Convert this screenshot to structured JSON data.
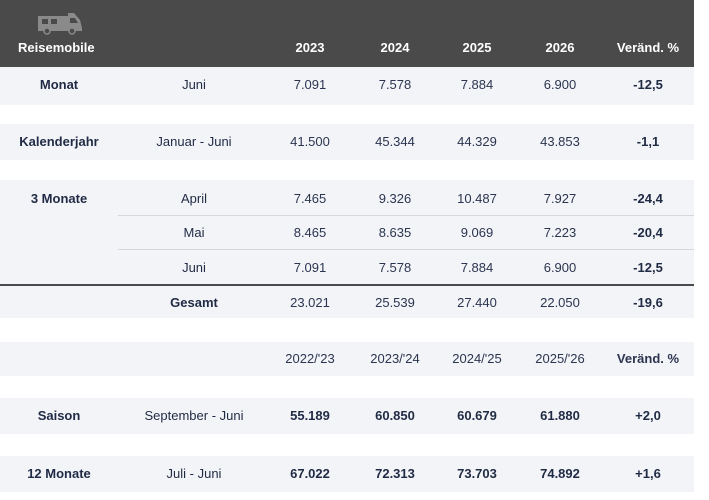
{
  "header": {
    "icon": "camper-van-icon",
    "title": "Reisemobile",
    "columns": [
      "2023",
      "2024",
      "2025",
      "2026",
      "Veränd. %"
    ]
  },
  "rows": {
    "monat": {
      "label": "Monat",
      "period": "Juni",
      "values": [
        "7.091",
        "7.578",
        "7.884",
        "6.900"
      ],
      "change": "-12,5"
    },
    "kalenderjahr": {
      "label": "Kalenderjahr",
      "period": "Januar - Juni",
      "values": [
        "41.500",
        "45.344",
        "44.329",
        "43.853"
      ],
      "change": "-1,1"
    },
    "drei_monate": {
      "label": "3 Monate",
      "items": [
        {
          "period": "April",
          "values": [
            "7.465",
            "9.326",
            "10.487",
            "7.927"
          ],
          "change": "-24,4"
        },
        {
          "period": "Mai",
          "values": [
            "8.465",
            "8.635",
            "9.069",
            "7.223"
          ],
          "change": "-20,4"
        },
        {
          "period": "Juni",
          "values": [
            "7.091",
            "7.578",
            "7.884",
            "6.900"
          ],
          "change": "-12,5"
        }
      ],
      "total": {
        "period": "Gesamt",
        "values": [
          "23.021",
          "25.539",
          "27.440",
          "22.050"
        ],
        "change": "-19,6"
      }
    }
  },
  "season_header": {
    "columns": [
      "2022/'23",
      "2023/'24",
      "2024/'25",
      "2025/'26",
      "Veränd. %"
    ]
  },
  "season_rows": {
    "saison": {
      "label": "Saison",
      "period": "September - Juni",
      "values": [
        "55.189",
        "60.850",
        "60.679",
        "61.880"
      ],
      "change": "+2,0"
    },
    "zwoelf_monate": {
      "label": "12 Monate",
      "period": "Juli - Juni",
      "values": [
        "67.022",
        "72.313",
        "73.703",
        "74.892"
      ],
      "change": "+1,6"
    }
  }
}
